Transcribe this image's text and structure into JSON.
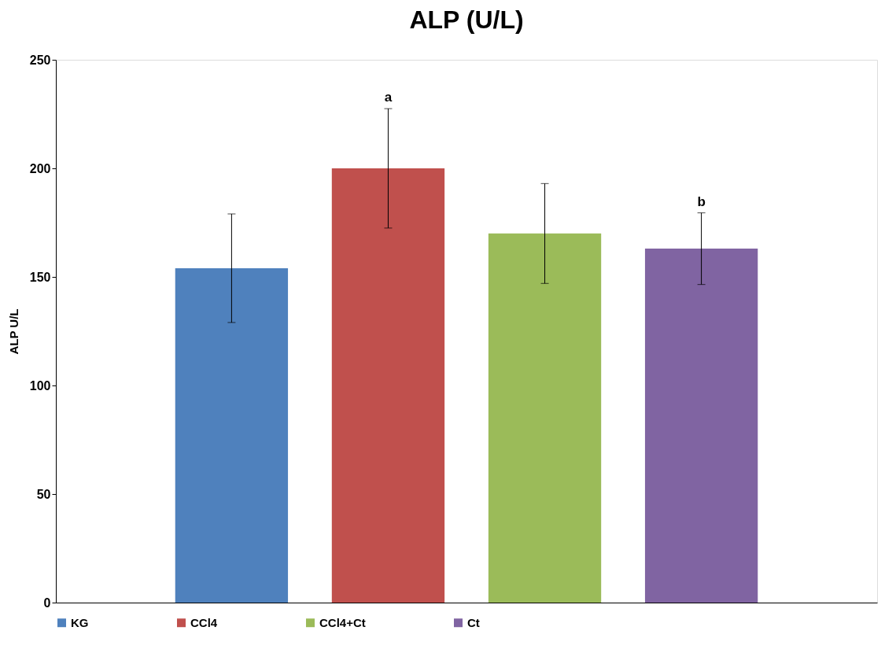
{
  "chart_data": {
    "type": "bar",
    "title": "ALP (U/L)",
    "ylabel": "ALP U/L",
    "categories": [
      null
    ],
    "series": [
      {
        "name": "KG",
        "color": "#4f81bd",
        "values": [
          154
        ],
        "errors": [
          25
        ]
      },
      {
        "name": "CCl4",
        "color": "#c0504d",
        "values": [
          200
        ],
        "errors": [
          27.5
        ]
      },
      {
        "name": "CCl4+Ct",
        "color": "#9bbb59",
        "values": [
          170
        ],
        "errors": [
          23
        ]
      },
      {
        "name": "Ct",
        "color": "#8064a2",
        "values": [
          163
        ],
        "errors": [
          16.5
        ]
      }
    ],
    "ylim": [
      0,
      250
    ],
    "yticks": [
      0,
      50,
      100,
      150,
      200,
      250
    ],
    "annotations": [
      {
        "text": "a",
        "y": 227.5
      },
      {
        "text": "b",
        "y": 179.5
      }
    ],
    "legend": "bottom",
    "tick_labels": "y",
    "grid": false
  }
}
